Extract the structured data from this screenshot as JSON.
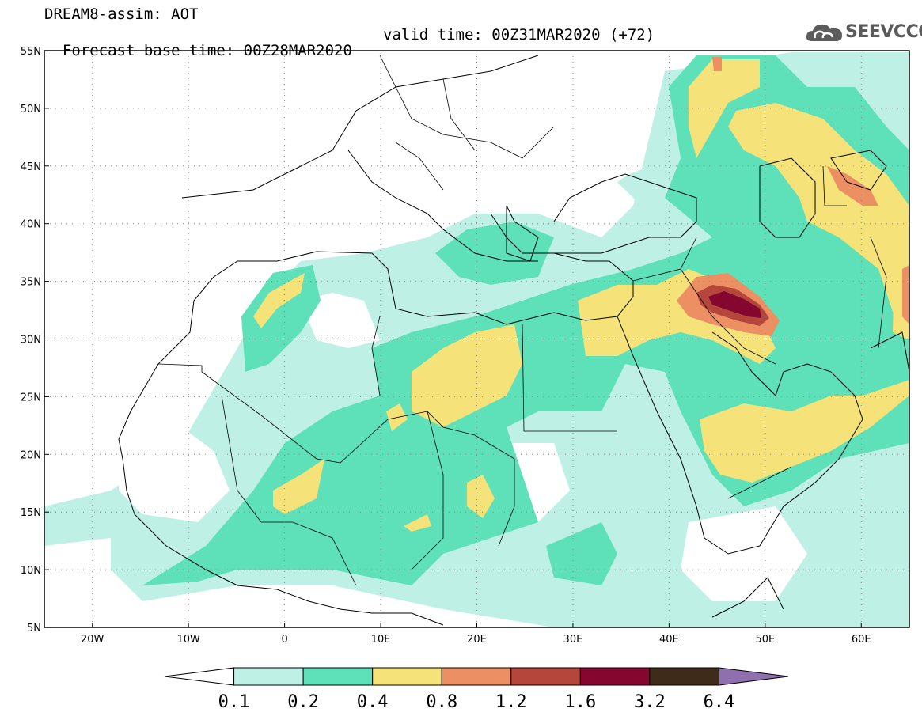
{
  "header": {
    "line1": "DREAM8-assim: AOT",
    "base": "Forecast base time: 00Z28MAR2020",
    "valid": "valid time: 00Z31MAR2020 (+72)"
  },
  "logo": {
    "text": "SEEVCCC",
    "icon": "cloud-icon"
  },
  "map": {
    "lon_min": -25,
    "lon_max": 65,
    "lat_min": 5,
    "lat_max": 55,
    "lat_labels": [
      "55N",
      "50N",
      "45N",
      "40N",
      "35N",
      "30N",
      "25N",
      "20N",
      "15N",
      "10N",
      "5N"
    ],
    "lon_labels": [
      "20W",
      "10W",
      "0",
      "10E",
      "20E",
      "30E",
      "40E",
      "50E",
      "60E"
    ],
    "lat_values": [
      55,
      50,
      45,
      40,
      35,
      30,
      25,
      20,
      15,
      10,
      5
    ],
    "lon_values": [
      -20,
      -10,
      0,
      10,
      20,
      30,
      40,
      50,
      60
    ]
  },
  "colorbar": {
    "labels": [
      "0.1",
      "0.2",
      "0.4",
      "0.8",
      "1.2",
      "1.6",
      "3.2",
      "6.4"
    ],
    "colors": [
      "#ffffff",
      "#bff0e6",
      "#5ee0b8",
      "#f5e37a",
      "#ec8f63",
      "#b5463c",
      "#85062e",
      "#3f2b1a",
      "#8f6fae"
    ]
  }
}
